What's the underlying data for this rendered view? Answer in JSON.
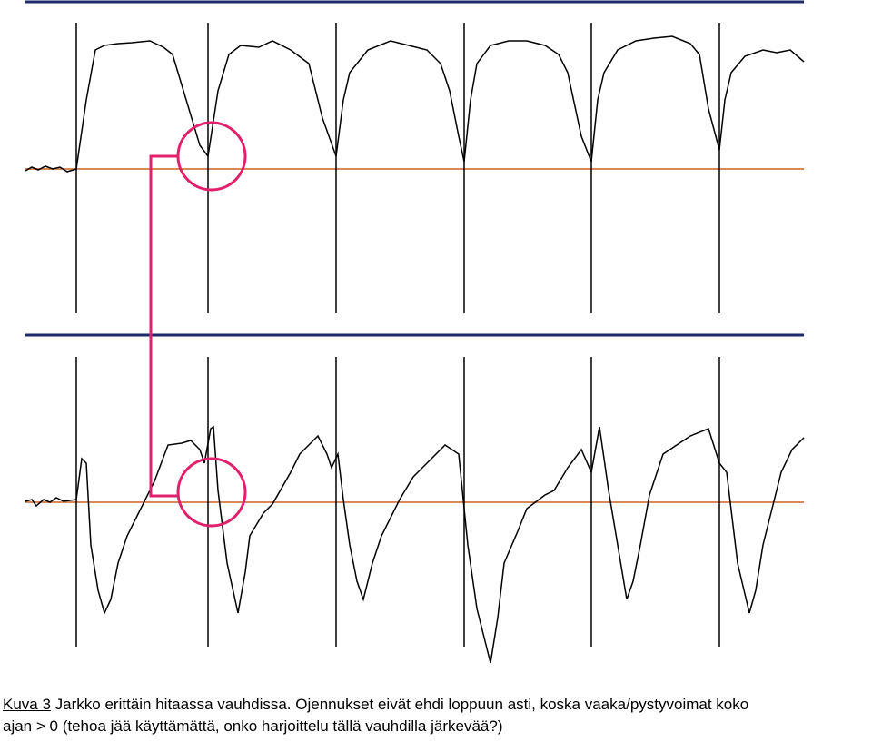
{
  "caption": {
    "label": "Kuva 3",
    "lines": [
      "Jarkko erittäin hitaassa vauhdissa. Ojennukset eivät ehdi loppuun asti, koska vaaka/pystyvoimat koko",
      "ajan > 0 (tehoa jää käyttämättä, onko harjoittelu tällä vauhdilla järkevää?)"
    ]
  }
}
